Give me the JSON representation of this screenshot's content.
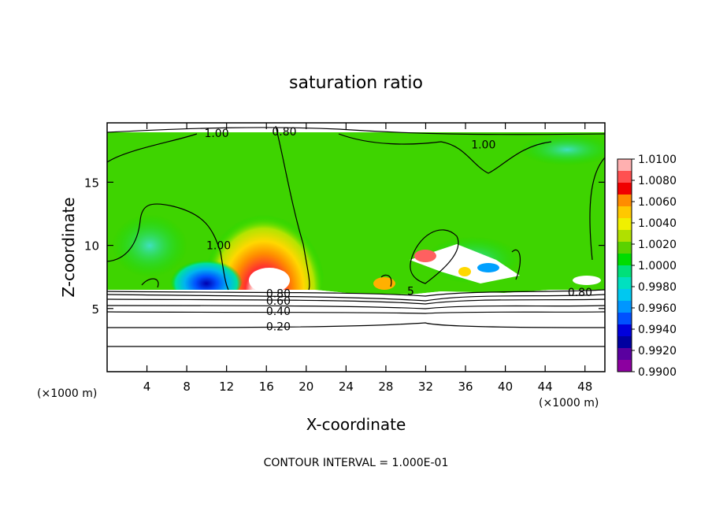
{
  "chart_data": {
    "type": "heatmap",
    "title": "saturation ratio",
    "xlabel": "X-coordinate",
    "ylabel": "Z-coordinate",
    "x_units": "(×1000 m)",
    "y_units": "(×1000 m)",
    "xlim": [
      0,
      50
    ],
    "ylim": [
      0,
      19.7
    ],
    "x_ticks": [
      4,
      8,
      12,
      16,
      20,
      24,
      28,
      32,
      36,
      40,
      44,
      48
    ],
    "y_ticks": [
      5,
      10,
      15
    ],
    "footer": "CONTOUR INTERVAL = 1.000E-01",
    "colorbar": {
      "labels": [
        "1.0100",
        "1.0080",
        "1.0060",
        "1.0040",
        "1.0020",
        "1.0000",
        "0.9980",
        "0.9960",
        "0.9940",
        "0.9920",
        "0.9900"
      ],
      "colors": [
        "#ffb0b0",
        "#ff5050",
        "#f00000",
        "#ff8c00",
        "#ffc800",
        "#f0f000",
        "#b0e000",
        "#5ad200",
        "#00dc00",
        "#00e07a",
        "#00e0c0",
        "#00c8f0",
        "#0096ff",
        "#0050ff",
        "#0000dc",
        "#0000a0",
        "#5a00a0",
        "#8c00a0"
      ]
    },
    "contour_labels": [
      {
        "text": "1.00",
        "x": 11,
        "y": 18.9
      },
      {
        "text": "0.80",
        "x": 17.8,
        "y": 19.0
      },
      {
        "text": "1.00",
        "x": 37.8,
        "y": 18.0
      },
      {
        "text": "1.00",
        "x": 11.2,
        "y": 10.0
      },
      {
        "text": "0.80",
        "x": 17.2,
        "y": 6.2
      },
      {
        "text": "0.60",
        "x": 17.2,
        "y": 5.6
      },
      {
        "text": "0.40",
        "x": 17.2,
        "y": 4.8
      },
      {
        "text": "0.20",
        "x": 17.2,
        "y": 3.6
      },
      {
        "text": "0.80",
        "x": 47.5,
        "y": 6.3
      },
      {
        "text": "5",
        "x": 30.5,
        "y": 6.4
      }
    ]
  }
}
